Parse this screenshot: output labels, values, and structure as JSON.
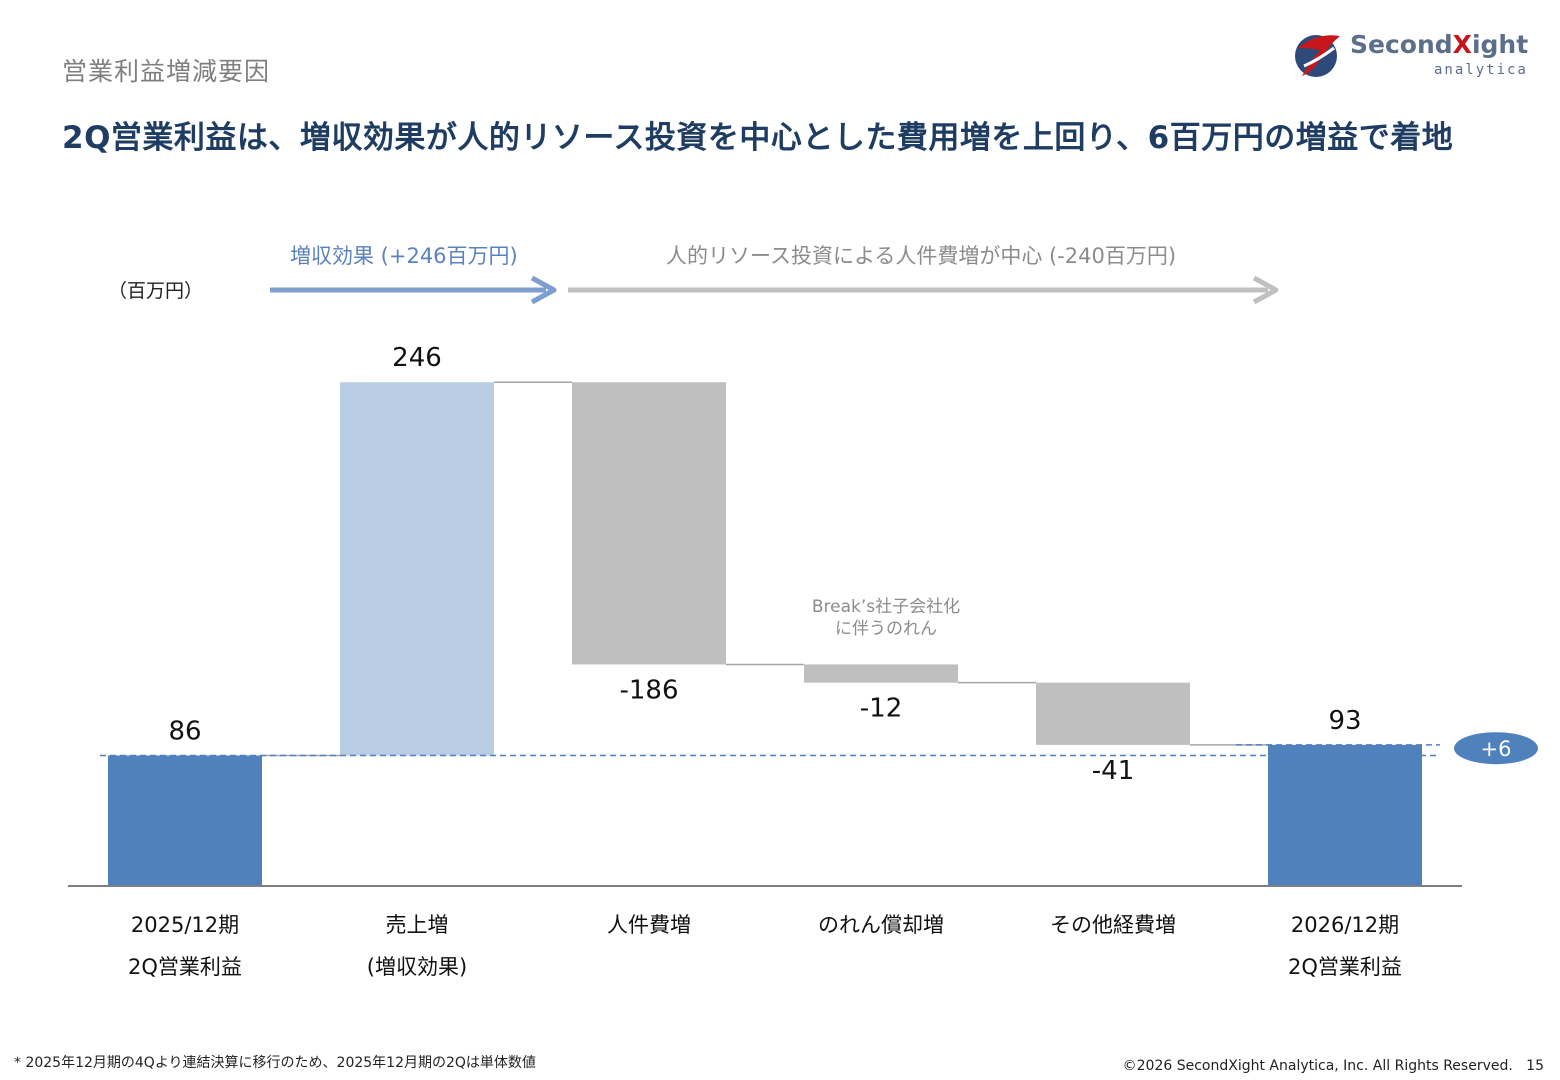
{
  "header": {
    "section_title": "営業利益増減要因",
    "headline": "2Q営業利益は、増収効果が人的リソース投資を中心とした費用増を上回り、6百万円の増益で着地"
  },
  "logo": {
    "word_main": "Second",
    "word_x": "X",
    "word_rest": "ight",
    "sub": "analytica"
  },
  "annotations": {
    "unit": "（百万円）",
    "increase_effect": "増収効果 (+246百万円)",
    "cost_effect": "人的リソース投資による人件費増が中心 (-240百万円)",
    "goodwill_note_line1": "Break’s社子会社化",
    "goodwill_note_line2": "に伴うのれん",
    "diff_badge": "+6"
  },
  "chart_data": {
    "type": "bar",
    "subtype": "waterfall",
    "unit": "（百万円）",
    "categories": [
      [
        "2025/12期",
        "2Q営業利益"
      ],
      [
        "売上増",
        "(増収効果)"
      ],
      [
        "人件費増",
        ""
      ],
      [
        "のれん償却増",
        ""
      ],
      [
        "その他経費増",
        ""
      ],
      [
        "2026/12期",
        "2Q営業利益"
      ]
    ],
    "steps": [
      {
        "kind": "total",
        "value": 86,
        "label": "86"
      },
      {
        "kind": "delta",
        "value": 246,
        "label": "246"
      },
      {
        "kind": "delta",
        "value": -186,
        "label": "-186"
      },
      {
        "kind": "delta",
        "value": -12,
        "label": "-12"
      },
      {
        "kind": "delta",
        "value": -41,
        "label": "-41"
      },
      {
        "kind": "total",
        "value": 93,
        "label": "93"
      }
    ],
    "ylim": [
      0,
      340
    ],
    "colors": {
      "total": "#4f81bd",
      "increase": "#b8cce4",
      "decrease": "#bfbfbf",
      "connector": "#a6a6a6",
      "baseline": "#7f7f7f",
      "ref_line": "#4f81bd",
      "arrow_blue": "#7d9fcf",
      "arrow_gray": "#c0c0c0",
      "badge": "#4f81bd"
    }
  },
  "footer": {
    "footnote": "* 2025年12月期の4Qより連結決算に移行のため、2025年12月期の2Qは単体数値",
    "copyright": "©2026 SecondXight Analytica, Inc. All Rights Reserved.",
    "page_number": "15"
  }
}
